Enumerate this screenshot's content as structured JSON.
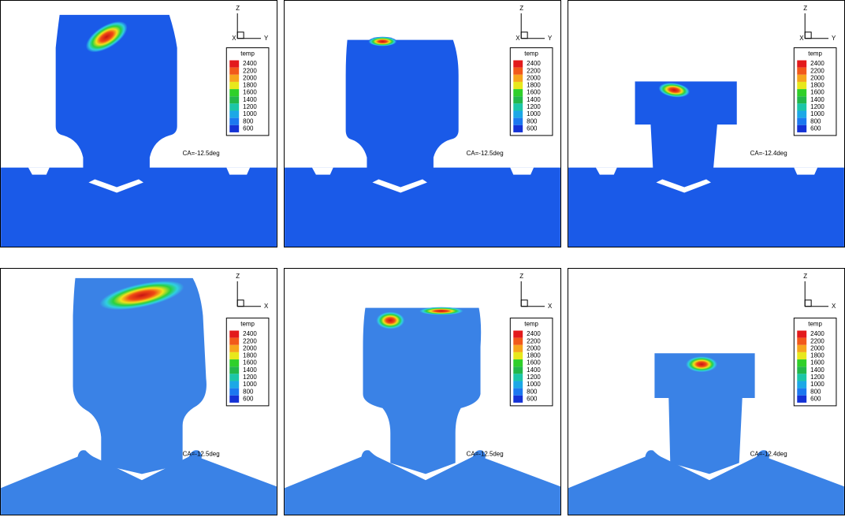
{
  "panels": [
    {
      "axes": {
        "vertical": "Z",
        "origin": "X",
        "horizontal": "Y"
      },
      "legend": {
        "title": "temp",
        "levels": [
          2400,
          2200,
          2000,
          1800,
          1600,
          1400,
          1200,
          1000,
          800,
          600
        ]
      },
      "label": "CA=-12.5deg"
    },
    {
      "axes": {
        "vertical": "Z",
        "origin": "X",
        "horizontal": "Y"
      },
      "legend": {
        "title": "temp",
        "levels": [
          2400,
          2200,
          2000,
          1800,
          1600,
          1400,
          1200,
          1000,
          800,
          600
        ]
      },
      "label": "CA=-12.5deg"
    },
    {
      "axes": {
        "vertical": "Z",
        "origin": "X",
        "horizontal": "Y"
      },
      "legend": {
        "title": "temp",
        "levels": [
          2400,
          2200,
          2000,
          1800,
          1600,
          1400,
          1200,
          1000,
          800,
          600
        ]
      },
      "label": "CA=-12.4deg"
    },
    {
      "axes": {
        "vertical": "Z",
        "horizontal": "X"
      },
      "legend": {
        "title": "temp",
        "levels": [
          2400,
          2200,
          2000,
          1800,
          1600,
          1400,
          1200,
          1000,
          800,
          600
        ]
      },
      "label": "CA=-12.5deg"
    },
    {
      "axes": {
        "vertical": "Z",
        "horizontal": "X"
      },
      "legend": {
        "title": "temp",
        "levels": [
          2400,
          2200,
          2000,
          1800,
          1600,
          1400,
          1200,
          1000,
          800,
          600
        ]
      },
      "label": "CA=-12.5deg"
    },
    {
      "axes": {
        "vertical": "Z",
        "horizontal": "X"
      },
      "legend": {
        "title": "temp",
        "levels": [
          2400,
          2200,
          2000,
          1800,
          1600,
          1400,
          1200,
          1000,
          800,
          600
        ]
      },
      "label": "CA=-12.4deg"
    }
  ]
}
